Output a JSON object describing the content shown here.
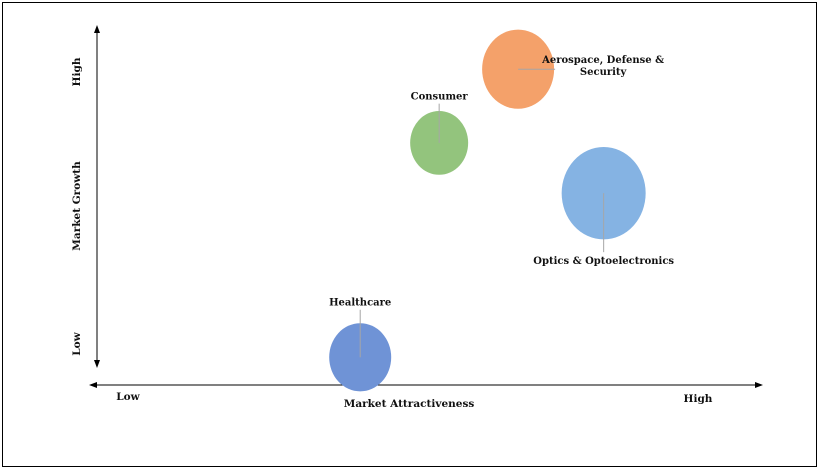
{
  "chart_data": {
    "type": "scatter",
    "title": "",
    "xlabel": "Market Attractiveness",
    "ylabel": "Market Growth",
    "x_ticks": {
      "low": "Low",
      "high": "High"
    },
    "y_ticks": {
      "low": "Low",
      "high": "High"
    },
    "xlim": [
      0,
      10
    ],
    "ylim": [
      0,
      10
    ],
    "grid": false,
    "legend": "none",
    "points": [
      {
        "label": "Aerospace, Defense & Security",
        "label_lines": [
          "Aerospace, Defense &",
          "Security"
        ],
        "x": 6.4,
        "y": 8.8,
        "size": 3.6,
        "color": "#F4A16A"
      },
      {
        "label": "Consumer",
        "label_lines": [
          "Consumer"
        ],
        "x": 5.2,
        "y": 6.6,
        "size": 2.9,
        "color": "#93C47D"
      },
      {
        "label": "Optics & Optoelectronics",
        "label_lines": [
          "Optics & Optoelectronics"
        ],
        "x": 7.7,
        "y": 5.1,
        "size": 4.2,
        "color": "#85B3E3"
      },
      {
        "label": "Healthcare",
        "label_lines": [
          "Healthcare"
        ],
        "x": 4.0,
        "y": 0.2,
        "size": 3.1,
        "color": "#6F93D6"
      }
    ]
  }
}
